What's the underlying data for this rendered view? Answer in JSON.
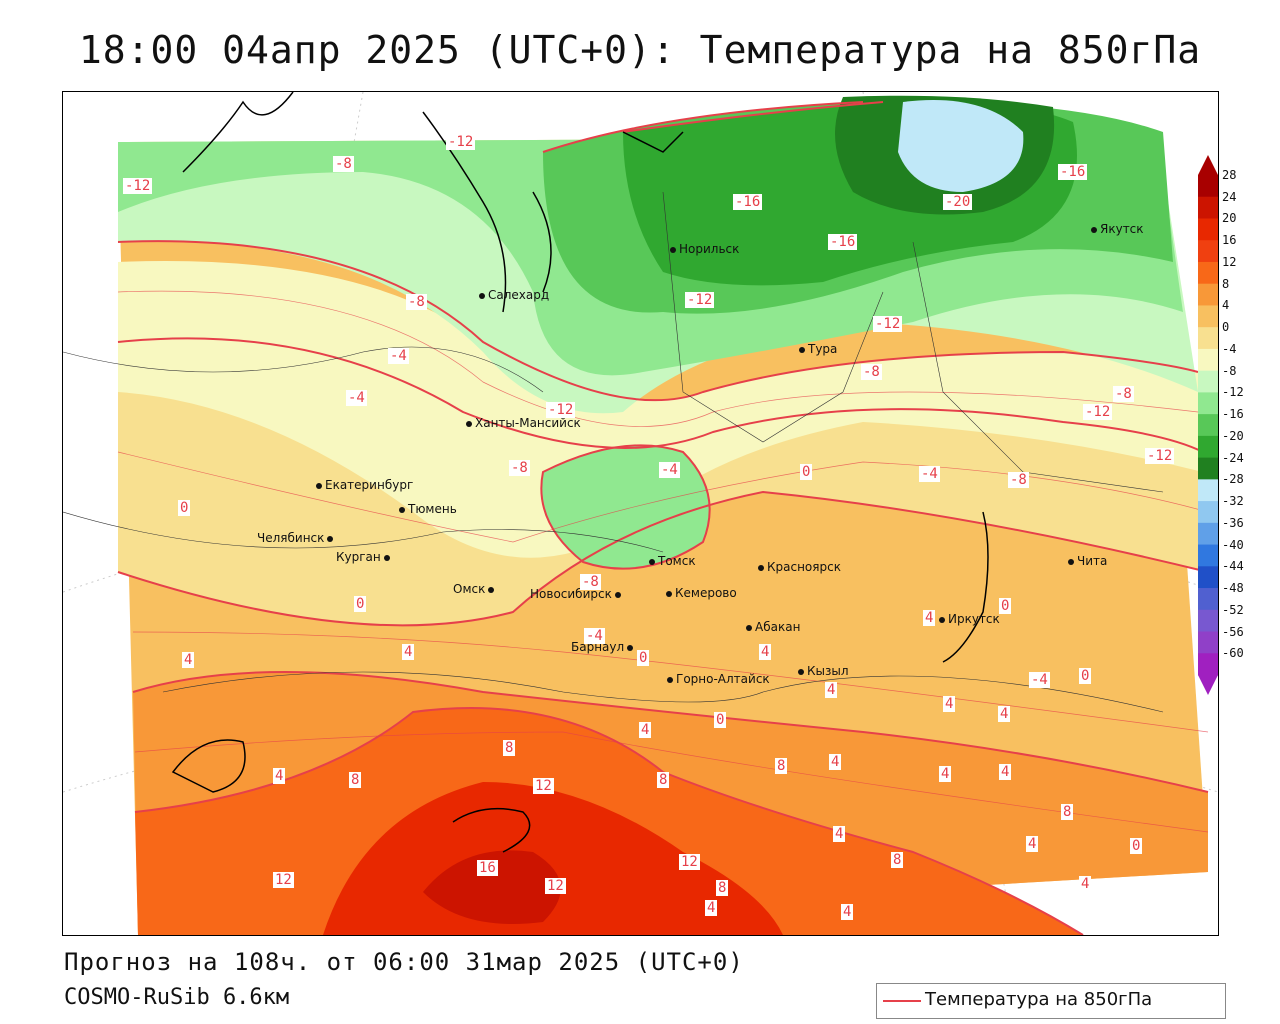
{
  "title": "18:00 04апр 2025 (UTC+0): Температура на 850гПа",
  "forecast_line": "Прогноз на 108ч. от 06:00 31мар 2025 (UTC+0)",
  "model_line": "COSMO-RuSib 6.6км",
  "legend": {
    "label": "Температура на 850гПа",
    "line_color": "#e6404a"
  },
  "colorbar": {
    "ticks": [
      "28",
      "24",
      "20",
      "16",
      "12",
      "8",
      "4",
      "0",
      "-4",
      "-8",
      "-12",
      "-16",
      "-20",
      "-24",
      "-28",
      "-32",
      "-36",
      "-40",
      "-44",
      "-48",
      "-52",
      "-56",
      "-60"
    ],
    "colors": [
      "#a80000",
      "#cc1400",
      "#e82800",
      "#f04010",
      "#f86818",
      "#f89838",
      "#f8c060",
      "#f8e090",
      "#f8f8c0",
      "#c8f8c0",
      "#90e890",
      "#58c858",
      "#30a830",
      "#208020",
      "#c0e8f8",
      "#90c8f0",
      "#60a0e8",
      "#3078e0",
      "#2050c8",
      "#5060d0",
      "#7858d0",
      "#9040c8",
      "#a020c0"
    ]
  },
  "cities": [
    {
      "name": "Норильск"
    },
    {
      "name": "Якутск"
    },
    {
      "name": "Салехард"
    },
    {
      "name": "Тура"
    },
    {
      "name": "Ханты-Мансийск"
    },
    {
      "name": "Екатеринбург"
    },
    {
      "name": "Тюмень"
    },
    {
      "name": "Челябинск"
    },
    {
      "name": "Курган"
    },
    {
      "name": "Омск"
    },
    {
      "name": "Новосибирск"
    },
    {
      "name": "Томск"
    },
    {
      "name": "Кемерово"
    },
    {
      "name": "Красноярск"
    },
    {
      "name": "Абакан"
    },
    {
      "name": "Барнаул"
    },
    {
      "name": "Горно-Алтайск"
    },
    {
      "name": "Кызыл"
    },
    {
      "name": "Иркутск"
    },
    {
      "name": "Чита"
    }
  ],
  "contour_labels": [
    "-12",
    "-8",
    "-12",
    "-16",
    "-20",
    "-16",
    "-16",
    "-12",
    "-12",
    "-8",
    "-4",
    "-4",
    "-12",
    "-8",
    "-8",
    "-4",
    "0",
    "-4",
    "-8",
    "-12",
    "-12",
    "-8",
    "0",
    "-8",
    "0",
    "-4",
    "4",
    "4",
    "0",
    "4",
    "8",
    "12",
    "16",
    "12",
    "12",
    "8",
    "4",
    "8",
    "12",
    "8",
    "4",
    "4",
    "0",
    "0",
    "4",
    "4",
    "4",
    "8",
    "4",
    "4",
    "4",
    "4",
    "8",
    "4",
    "0",
    "4",
    "-4",
    "0",
    "4",
    "8",
    "4"
  ]
}
